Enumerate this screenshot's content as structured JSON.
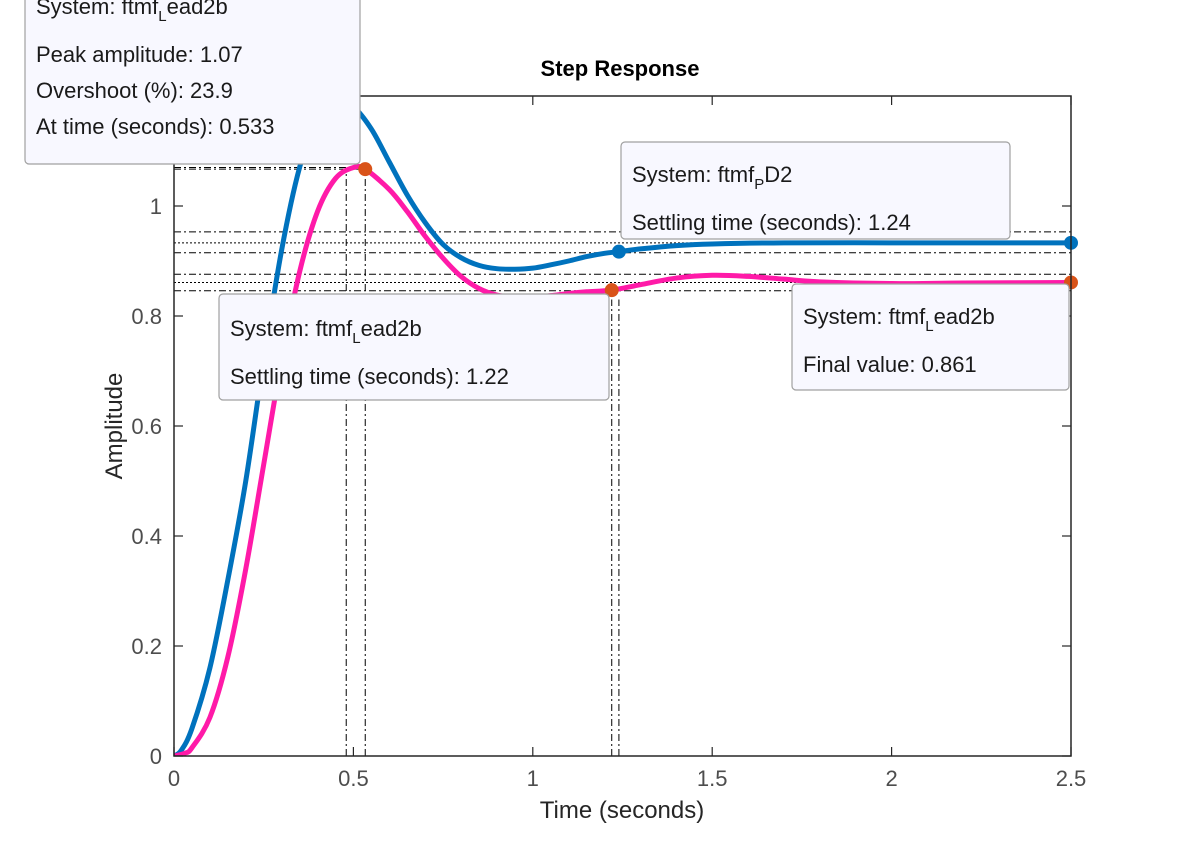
{
  "chart_data": {
    "type": "line",
    "title": "Step Response",
    "xlabel": "Time (seconds)",
    "ylabel": "Amplitude",
    "xlim": [
      0,
      2.5
    ],
    "ylim": [
      0,
      1.2
    ],
    "xticks": [
      0,
      0.5,
      1,
      1.5,
      2,
      2.5
    ],
    "xtick_labels": [
      "0",
      "0.5",
      "1",
      "1.5",
      "2",
      "2.5"
    ],
    "yticks": [
      0,
      0.2,
      0.4,
      0.6,
      0.8,
      1
    ],
    "ytick_labels": [
      "0",
      "0.2",
      "0.4",
      "0.6",
      "0.8",
      "1"
    ],
    "grid": false,
    "colors": {
      "series_pd2": "#0072bd",
      "series_lead2b": "#ff1aa8",
      "marker_pd2": "#0072bd",
      "marker_lead2b": "#d95319",
      "datatip_bg": "#f8f8ff",
      "datatip_border": "#a0a0a0"
    },
    "series": [
      {
        "system_base": "ftmf",
        "system_sub": "P",
        "system_tail": "D2",
        "color": "#0072bd",
        "x": [
          0,
          0.02,
          0.05,
          0.1,
          0.15,
          0.2,
          0.25,
          0.3,
          0.35,
          0.4,
          0.45,
          0.5,
          0.55,
          0.6,
          0.65,
          0.7,
          0.75,
          0.8,
          0.85,
          0.9,
          0.95,
          1.0,
          1.05,
          1.1,
          1.15,
          1.2,
          1.24,
          1.3,
          1.4,
          1.5,
          1.7,
          2.0,
          2.3,
          2.5
        ],
        "y": [
          0,
          0.01,
          0.05,
          0.16,
          0.32,
          0.5,
          0.72,
          0.92,
          1.07,
          1.16,
          1.19,
          1.18,
          1.14,
          1.08,
          1.02,
          0.97,
          0.93,
          0.906,
          0.892,
          0.886,
          0.885,
          0.887,
          0.893,
          0.9,
          0.908,
          0.914,
          0.917,
          0.922,
          0.928,
          0.931,
          0.933,
          0.933,
          0.933,
          0.933
        ]
      },
      {
        "system_base": "ftmf",
        "system_sub": "L",
        "system_tail": "ead2b",
        "color": "#ff1aa8",
        "x": [
          0,
          0.03,
          0.05,
          0.1,
          0.15,
          0.2,
          0.25,
          0.3,
          0.35,
          0.4,
          0.45,
          0.5,
          0.533,
          0.6,
          0.65,
          0.7,
          0.75,
          0.8,
          0.85,
          0.9,
          0.95,
          1.0,
          1.05,
          1.1,
          1.15,
          1.22,
          1.3,
          1.4,
          1.5,
          1.6,
          1.7,
          1.8,
          2.0,
          2.2,
          2.5
        ],
        "y": [
          0,
          0.005,
          0.015,
          0.07,
          0.18,
          0.34,
          0.53,
          0.72,
          0.88,
          0.99,
          1.05,
          1.07,
          1.067,
          1.03,
          0.99,
          0.945,
          0.905,
          0.872,
          0.85,
          0.838,
          0.834,
          0.834,
          0.837,
          0.841,
          0.844,
          0.847,
          0.857,
          0.869,
          0.874,
          0.872,
          0.867,
          0.862,
          0.859,
          0.86,
          0.861
        ]
      }
    ],
    "datatips": [
      {
        "label_prefix": "System: ",
        "system_base": "ftmf",
        "system_sub": "L",
        "system_tail": "ead2b",
        "lines": [
          "Peak amplitude: 1.07",
          "Overshoot (%): 23.9",
          "At time (seconds): 0.533"
        ]
      },
      {
        "label_prefix": "System: ",
        "system_base": "ftmf",
        "system_sub": "P",
        "system_tail": "D2",
        "lines": [
          "Settling time (seconds): 1.24"
        ]
      },
      {
        "label_prefix": "System: ",
        "system_base": "ftmf",
        "system_sub": "L",
        "system_tail": "ead2b",
        "lines": [
          "Settling time (seconds): 1.22"
        ]
      },
      {
        "label_prefix": "System: ",
        "system_base": "ftmf",
        "system_sub": "L",
        "system_tail": "ead2b",
        "lines": [
          "Final value: 0.861"
        ]
      }
    ],
    "markers": [
      {
        "series": 1,
        "x": 0.533,
        "y": 1.067,
        "color": "#d95319"
      },
      {
        "series": 0,
        "x": 1.24,
        "y": 0.917,
        "color": "#0072bd"
      },
      {
        "series": 1,
        "x": 1.22,
        "y": 0.847,
        "color": "#d95319"
      },
      {
        "series": 0,
        "x": 2.5,
        "y": 0.933,
        "color": "#0072bd"
      },
      {
        "series": 1,
        "x": 2.5,
        "y": 0.861,
        "color": "#d95319"
      }
    ],
    "settling_bands": [
      {
        "series": 0,
        "low": 0.915,
        "high": 0.953,
        "center": 0.933
      },
      {
        "series": 1,
        "low": 0.846,
        "high": 0.876,
        "center": 0.861
      }
    ],
    "peak_guides": [
      {
        "x": 0.48,
        "y": 1.07
      },
      {
        "x": 0.533,
        "y": 1.067
      }
    ],
    "settling_guides": [
      {
        "x": 1.22
      },
      {
        "x": 1.24
      }
    ]
  }
}
